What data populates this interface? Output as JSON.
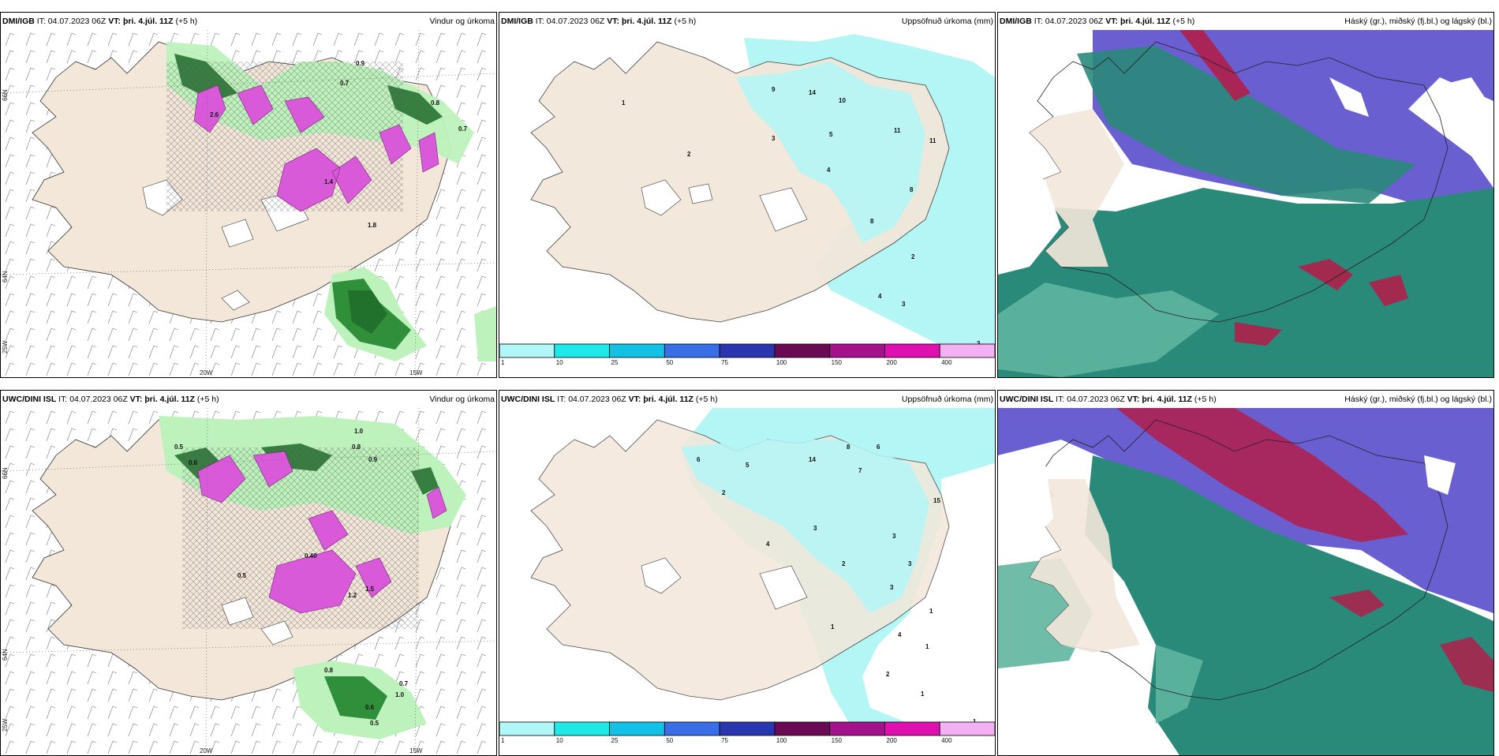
{
  "rows": [
    {
      "model": "DMI/IGB",
      "it_label": "IT:",
      "it_value": "04.07.2023 06Z",
      "vt_label": "VT:",
      "vt_value": "þri. 4.júl. 11Z",
      "lead": "(+5 h)"
    },
    {
      "model": "UWC/DINI ISL",
      "it_label": "IT:",
      "it_value": "04.07.2023 06Z",
      "vt_label": "VT:",
      "vt_value": "þri. 4.júl. 11Z",
      "lead": "(+5 h)"
    }
  ],
  "panel_titles": {
    "wind": "Vindur og úrkoma",
    "precip": "Uppsöfnuð úrkoma (mm)",
    "cloud": "Háský (gr.), miðský (fj.bl.) og lágský (bl.)"
  },
  "axis_labels": {
    "lat66": "66N",
    "lat64": "64N",
    "lon20": "20W",
    "lon15": "15W",
    "lon25": "25W"
  },
  "colorbar": {
    "ticks": [
      "1",
      "10",
      "25",
      "50",
      "75",
      "100",
      "150",
      "200",
      "400"
    ],
    "colors": [
      "#b2f7f7",
      "#1ee8e8",
      "#12c2e6",
      "#3a6ee6",
      "#2a35b0",
      "#6a0a55",
      "#a3128a",
      "#e010b0",
      "#f3b0f3"
    ]
  },
  "colors": {
    "land": "#f3e7da",
    "precip_light": "#b4f5f5",
    "wind_rain_light": "#bdf2bd",
    "wind_rain_dark": "#2f8f3a",
    "snow_magenta": "#d85ad8",
    "cloud_high": "#6a5fd0",
    "cloud_mid": "#2a8a7a",
    "cloud_low": "#b01f4a"
  },
  "wind_numbers_top": [
    "0.9",
    "0.7",
    "0.8",
    "0.7",
    "1.4",
    "1.8",
    "2.6"
  ],
  "wind_numbers_bottom": [
    "0.5",
    "1.0",
    "0.8",
    "0.9",
    "0.6",
    "0.5",
    "0.8",
    "0.7",
    "1.0",
    "0.6",
    "0.5",
    "1.5",
    "1.2",
    "0.40"
  ],
  "precip_numbers_top": [
    "1",
    "2",
    "3",
    "5",
    "4",
    "9",
    "14",
    "10",
    "11",
    "11",
    "8",
    "8",
    "2",
    "4",
    "3",
    "3"
  ],
  "precip_numbers_bottom": [
    "6",
    "5",
    "14",
    "8",
    "6",
    "7",
    "2",
    "4",
    "3",
    "15",
    "3",
    "3",
    "3",
    "2",
    "1",
    "4",
    "1",
    "2",
    "1",
    "1",
    "1"
  ]
}
